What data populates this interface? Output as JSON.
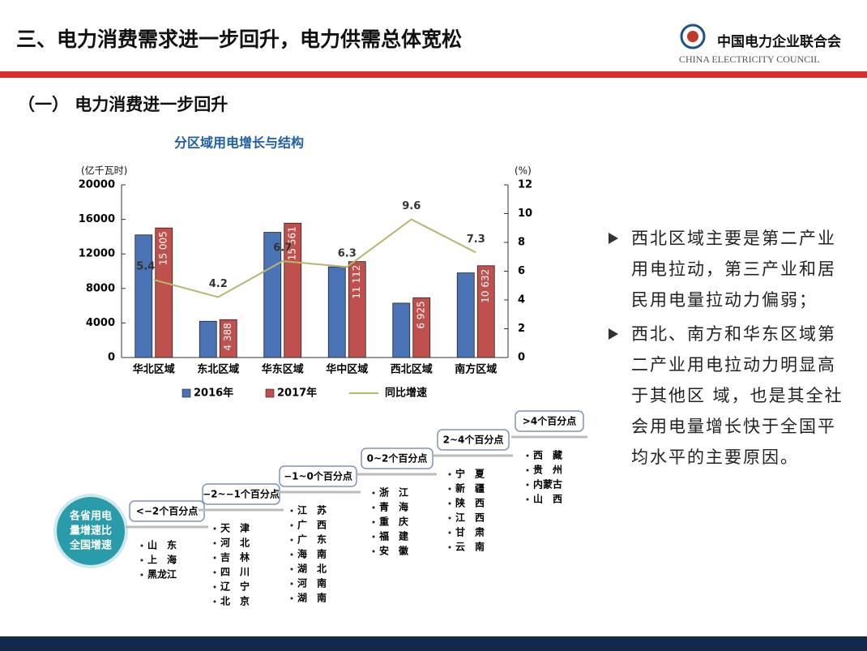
{
  "header": {
    "title": "三、电力消费需求进一步回升，电力供需总体宽松",
    "org_cn": "中国电力企业联合会",
    "org_en": "CHINA ELECTRICITY COUNCIL"
  },
  "section": "（一） 电力消费进一步回升",
  "chart_data": {
    "type": "bar",
    "title": "分区域用电增长与结构",
    "y_label": "(亿千瓦时)",
    "y2_label": "(%)",
    "categories": [
      "华北区域",
      "东北区域",
      "华东区域",
      "华中区域",
      "西北区域",
      "南方区域"
    ],
    "series": [
      {
        "name": "2016年",
        "color": "#4a73b5",
        "values": [
          14200,
          4200,
          14500,
          10500,
          6300,
          9800
        ]
      },
      {
        "name": "2017年",
        "color": "#c0504d",
        "values": [
          15005,
          4388,
          15561,
          11112,
          6925,
          10632
        ],
        "value_labels": [
          "15 005",
          "4 388",
          "15 561",
          "11 112",
          "6 925",
          "10 632"
        ]
      },
      {
        "name": "同比增速",
        "type": "line",
        "axis": "y2",
        "color": "#b8b66e",
        "values": [
          5.4,
          4.2,
          6.7,
          6.3,
          9.6,
          7.3
        ]
      }
    ],
    "ylim": [
      0,
      20000
    ],
    "yticks": [
      0,
      4000,
      8000,
      12000,
      16000,
      20000
    ],
    "y2lim": [
      0,
      12
    ],
    "y2ticks": [
      0,
      2,
      4,
      6,
      8,
      10,
      12
    ],
    "legend": "bottom"
  },
  "bullets": [
    "西北区域主要是第二产业用电拉动，第三产业和居民用电量拉动力偏弱；",
    "西北、南方和华东区域第二产业用电拉动力明显高于其他区 域，也是其全社会用电量增长快于全国平均水平的主要原因。"
  ],
  "diagram": {
    "center": [
      "各省用电",
      "量增速比",
      "全国增速"
    ],
    "steps": [
      {
        "label": "<−2个百分点",
        "items": [
          "山　东",
          "上　海",
          "黑龙江"
        ]
      },
      {
        "label": "−2~−1个百分点",
        "items": [
          "天　津",
          "河　北",
          "吉　林",
          "四　川",
          "辽　宁",
          "北　京"
        ]
      },
      {
        "label": "−1~0个百分点",
        "items": [
          "江　苏",
          "广　西",
          "广　东",
          "海　南",
          "湖　北",
          "河　南",
          "湖　南"
        ]
      },
      {
        "label": "0~2个百分点",
        "items": [
          "浙　江",
          "青　海",
          "重　庆",
          "福　建",
          "安　徽"
        ]
      },
      {
        "label": "2~4个百分点",
        "items": [
          "宁　夏",
          "新　疆",
          "陕　西",
          "江　西",
          "甘　肃",
          "云　南"
        ]
      },
      {
        "label": ">4个百分点",
        "items": [
          "西　藏",
          "贵　州",
          "内蒙古",
          "山　西"
        ]
      }
    ]
  }
}
